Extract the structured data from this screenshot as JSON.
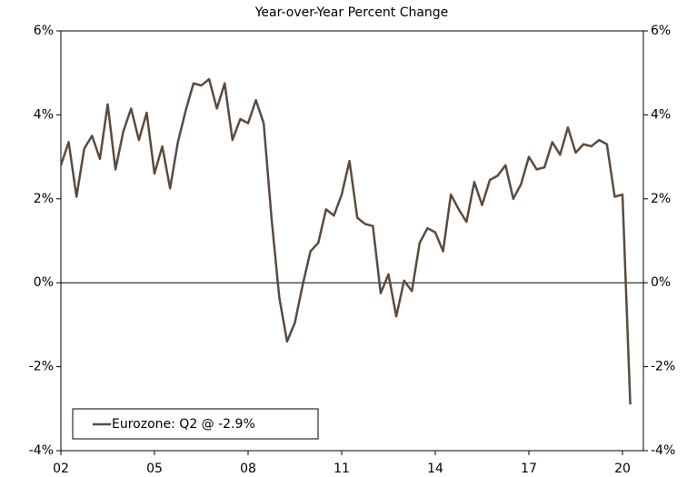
{
  "chart_data": {
    "type": "line",
    "subtitle": "Year-over-Year Percent Change",
    "x": [
      2002,
      2002.25,
      2002.5,
      2002.75,
      2003,
      2003.25,
      2003.5,
      2003.75,
      2004,
      2004.25,
      2004.5,
      2004.75,
      2005,
      2005.25,
      2005.5,
      2005.75,
      2006,
      2006.25,
      2006.5,
      2006.75,
      2007,
      2007.25,
      2007.5,
      2007.75,
      2008,
      2008.25,
      2008.5,
      2008.75,
      2009,
      2009.25,
      2009.5,
      2009.75,
      2010,
      2010.25,
      2010.5,
      2010.75,
      2011,
      2011.25,
      2011.5,
      2011.75,
      2012,
      2012.25,
      2012.5,
      2012.75,
      2013,
      2013.25,
      2013.5,
      2013.75,
      2014,
      2014.25,
      2014.5,
      2014.75,
      2015,
      2015.25,
      2015.5,
      2015.75,
      2016,
      2016.25,
      2016.5,
      2016.75,
      2017,
      2017.25,
      2017.5,
      2017.75,
      2018,
      2018.25,
      2018.5,
      2018.75,
      2019,
      2019.25,
      2019.5,
      2019.75,
      2020,
      2020.25
    ],
    "series": [
      {
        "name": "Eurozone: Q2 @ -2.9%",
        "color": "#5b4b3e",
        "values": [
          2.8,
          3.35,
          2.05,
          3.2,
          3.5,
          2.95,
          4.25,
          2.7,
          3.6,
          4.15,
          3.4,
          4.05,
          2.6,
          3.25,
          2.25,
          3.35,
          4.1,
          4.75,
          4.7,
          4.85,
          4.15,
          4.75,
          3.4,
          3.9,
          3.8,
          4.35,
          3.8,
          1.55,
          -0.35,
          -1.4,
          -0.95,
          -0.05,
          0.75,
          0.95,
          1.75,
          1.6,
          2.1,
          2.9,
          1.55,
          1.4,
          1.35,
          -0.25,
          0.2,
          -0.8,
          0.05,
          -0.2,
          0.95,
          1.3,
          1.2,
          0.75,
          2.1,
          1.75,
          1.45,
          2.4,
          1.85,
          2.45,
          2.55,
          2.8,
          2.0,
          2.35,
          3.0,
          2.7,
          2.75,
          3.35,
          3.05,
          3.7,
          3.1,
          3.3,
          3.25,
          3.4,
          3.3,
          2.05,
          2.1,
          -2.9
        ]
      }
    ],
    "xlim": [
      2002,
      2020.67
    ],
    "xticks": [
      {
        "value": 2002,
        "label": "02"
      },
      {
        "value": 2005,
        "label": "05"
      },
      {
        "value": 2008,
        "label": "08"
      },
      {
        "value": 2011,
        "label": "11"
      },
      {
        "value": 2014,
        "label": "14"
      },
      {
        "value": 2017,
        "label": "17"
      },
      {
        "value": 2020,
        "label": "20"
      }
    ],
    "ylim": [
      -4,
      6
    ],
    "yticks": [
      {
        "value": -4,
        "label": "-4%"
      },
      {
        "value": -2,
        "label": "-2%"
      },
      {
        "value": 0,
        "label": "0%"
      },
      {
        "value": 2,
        "label": "2%"
      },
      {
        "value": 4,
        "label": "4%"
      },
      {
        "value": 6,
        "label": "6%"
      }
    ],
    "legend": "lower left"
  }
}
